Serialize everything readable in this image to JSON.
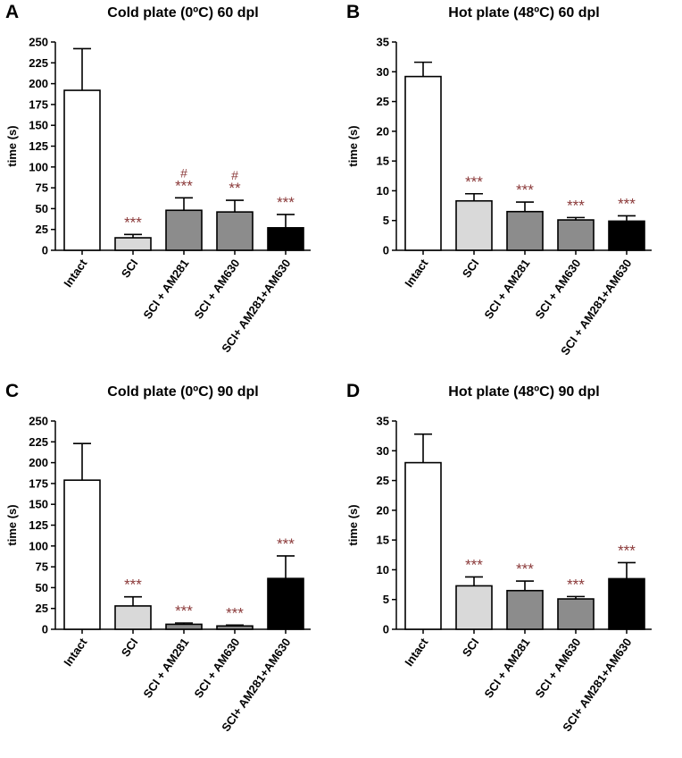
{
  "colors": {
    "intact": "#ffffff",
    "sci": "#d9d9d9",
    "am281": "#8c8c8c",
    "am630": "#8c8c8c",
    "combo": "#000000",
    "significance": "#8b3a3a",
    "axis": "#000000"
  },
  "chart_data": [
    {
      "panel": "A",
      "type": "bar",
      "title": "Cold plate (0ºC) 60 dpl",
      "ylabel": "time (s)",
      "ylim": [
        0,
        250
      ],
      "yticks": [
        0,
        25,
        50,
        75,
        100,
        125,
        150,
        175,
        200,
        225,
        250
      ],
      "categories": [
        "Intact",
        "SCI",
        "SCI + AM281",
        "SCI + AM630",
        "SCI+ AM281+AM630"
      ],
      "values": [
        192,
        15,
        48,
        46,
        27
      ],
      "errors": [
        50,
        4,
        15,
        14,
        16
      ],
      "annotations": [
        "",
        "***",
        "#\n***",
        "#\n**",
        "***"
      ]
    },
    {
      "panel": "B",
      "type": "bar",
      "title": "Hot plate (48ºC) 60 dpl",
      "ylabel": "time (s)",
      "ylim": [
        0,
        35
      ],
      "yticks": [
        0,
        5,
        10,
        15,
        20,
        25,
        30,
        35
      ],
      "categories": [
        "Intact",
        "SCI",
        "SCI + AM281",
        "SCI + AM630",
        "SCI + AM281+AM630"
      ],
      "values": [
        29.2,
        8.3,
        6.5,
        5.1,
        4.9
      ],
      "errors": [
        2.4,
        1.2,
        1.6,
        0.4,
        0.9
      ],
      "annotations": [
        "",
        "***",
        "***",
        "***",
        "***"
      ]
    },
    {
      "panel": "C",
      "type": "bar",
      "title": "Cold plate (0ºC) 90 dpl",
      "ylabel": "time (s)",
      "ylim": [
        0,
        250
      ],
      "yticks": [
        0,
        25,
        50,
        75,
        100,
        125,
        150,
        175,
        200,
        225,
        250
      ],
      "categories": [
        "Intact",
        "SCI",
        "SCI + AM281",
        "SCI + AM630",
        "SCI+ AM281+AM630"
      ],
      "values": [
        179,
        28,
        6,
        4,
        61
      ],
      "errors": [
        44,
        11,
        1.5,
        1,
        27
      ],
      "annotations": [
        "",
        "***",
        "***",
        "***",
        "***"
      ]
    },
    {
      "panel": "D",
      "type": "bar",
      "title": "Hot plate (48ºC) 90 dpl",
      "ylabel": "time (s)",
      "ylim": [
        0,
        35
      ],
      "yticks": [
        0,
        5,
        10,
        15,
        20,
        25,
        30,
        35
      ],
      "categories": [
        "Intact",
        "SCI",
        "SCI + AM281",
        "SCI + AM630",
        "SCI+ AM281+AM630"
      ],
      "values": [
        28,
        7.3,
        6.5,
        5.1,
        8.5
      ],
      "errors": [
        4.8,
        1.5,
        1.6,
        0.4,
        2.7
      ],
      "annotations": [
        "",
        "***",
        "***",
        "***",
        "***"
      ]
    }
  ]
}
